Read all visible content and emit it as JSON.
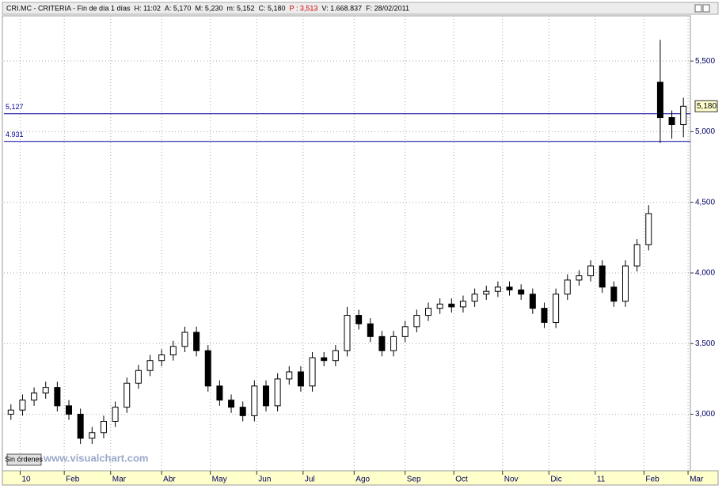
{
  "header": [
    "CRI.MC - CRITERIA - Fin de día 1 días",
    "H: 11:02",
    "A: 5,170",
    "M: 5,230",
    "m: 5,152",
    "C: 5,180",
    "P : 3,513",
    "V: 1.668.837",
    "F: 28/02/2011"
  ],
  "status_button": "Sin órdenes",
  "watermark": "www.visualchart.com",
  "chart_data": {
    "type": "candlestick",
    "x": [
      0,
      5,
      10,
      15,
      20,
      25,
      30,
      35,
      40,
      45,
      50,
      55,
      60,
      65,
      70,
      75,
      80,
      85,
      90,
      95,
      100,
      105,
      110,
      115,
      120,
      125,
      130,
      135,
      140,
      145,
      150,
      155,
      160,
      165,
      170,
      175,
      180,
      185,
      190,
      195,
      200,
      205,
      210,
      215,
      220,
      225,
      230,
      235,
      240,
      245,
      250,
      255,
      260,
      265,
      270,
      275,
      280,
      285,
      290
    ],
    "open": [
      3000,
      3030,
      3100,
      3150,
      3190,
      3060,
      3000,
      2830,
      2870,
      2950,
      3050,
      3220,
      3310,
      3380,
      3420,
      3480,
      3580,
      3450,
      3200,
      3100,
      3050,
      2990,
      3200,
      3060,
      3250,
      3300,
      3200,
      3400,
      3380,
      3450,
      3700,
      3640,
      3550,
      3450,
      3550,
      3620,
      3700,
      3750,
      3780,
      3760,
      3800,
      3850,
      3870,
      3900,
      3880,
      3850,
      3750,
      3650,
      3850,
      3950,
      3980,
      4050,
      3900,
      3800,
      4050,
      4200,
      5350,
      5100,
      5050
    ],
    "high": [
      3070,
      3140,
      3190,
      3230,
      3230,
      3100,
      3040,
      2910,
      2990,
      3090,
      3260,
      3350,
      3420,
      3460,
      3520,
      3620,
      3620,
      3490,
      3240,
      3140,
      3090,
      3240,
      3240,
      3290,
      3340,
      3340,
      3440,
      3440,
      3490,
      3760,
      3740,
      3680,
      3590,
      3590,
      3660,
      3740,
      3790,
      3820,
      3820,
      3840,
      3890,
      3910,
      3940,
      3940,
      3920,
      3890,
      3790,
      3890,
      3990,
      4020,
      4090,
      4090,
      3940,
      4090,
      4240,
      4480,
      5650,
      5150,
      5240
    ],
    "low": [
      2960,
      2990,
      3060,
      3110,
      3020,
      2960,
      2790,
      2790,
      2830,
      2910,
      3010,
      3180,
      3270,
      3340,
      3380,
      3440,
      3410,
      3160,
      3060,
      3010,
      2950,
      2950,
      3020,
      3020,
      3210,
      3160,
      3160,
      3340,
      3340,
      3410,
      3600,
      3510,
      3410,
      3410,
      3510,
      3580,
      3660,
      3710,
      3720,
      3720,
      3760,
      3810,
      3830,
      3840,
      3810,
      3710,
      3610,
      3610,
      3810,
      3910,
      3940,
      3860,
      3760,
      3760,
      4010,
      4160,
      4920,
      4950,
      4960
    ],
    "close": [
      3030,
      3100,
      3150,
      3190,
      3060,
      3000,
      2830,
      2870,
      2950,
      3050,
      3220,
      3310,
      3380,
      3420,
      3480,
      3580,
      3450,
      3200,
      3100,
      3050,
      2990,
      3200,
      3060,
      3250,
      3300,
      3200,
      3400,
      3380,
      3450,
      3700,
      3640,
      3550,
      3450,
      3550,
      3620,
      3700,
      3750,
      3780,
      3760,
      3800,
      3850,
      3870,
      3900,
      3880,
      3850,
      3750,
      3650,
      3850,
      3950,
      3980,
      4050,
      3900,
      3800,
      4050,
      4200,
      4420,
      5100,
      5050,
      5180
    ],
    "xlim": [
      -3,
      293
    ],
    "xticks": [
      {
        "value": 4,
        "label": "10"
      },
      {
        "value": 23,
        "label": "Feb"
      },
      {
        "value": 43,
        "label": "Mar"
      },
      {
        "value": 65,
        "label": "Abr"
      },
      {
        "value": 86,
        "label": "May"
      },
      {
        "value": 106,
        "label": "Jun"
      },
      {
        "value": 126,
        "label": "Jul"
      },
      {
        "value": 148,
        "label": "Ago"
      },
      {
        "value": 170,
        "label": "Sep"
      },
      {
        "value": 191,
        "label": "Oct"
      },
      {
        "value": 212,
        "label": "Nov"
      },
      {
        "value": 232,
        "label": "Dic"
      },
      {
        "value": 252,
        "label": "11"
      },
      {
        "value": 273,
        "label": "Feb"
      },
      {
        "value": 292,
        "label": "Mar"
      }
    ],
    "ylim": [
      2600,
      5820
    ],
    "yticks": [
      {
        "value": 3000,
        "label": "3,000"
      },
      {
        "value": 3500,
        "label": "3,500"
      },
      {
        "value": 4000,
        "label": "4,000"
      },
      {
        "value": 4500,
        "label": "4,500"
      },
      {
        "value": 5000,
        "label": "5,000"
      },
      {
        "value": 5500,
        "label": "5,500"
      }
    ],
    "hlines": [
      {
        "value": 5127,
        "label": "5,127"
      },
      {
        "value": 4931,
        "label": "4.931"
      }
    ],
    "last_price": {
      "value": 5180,
      "label": "5,180"
    },
    "grid": true
  }
}
